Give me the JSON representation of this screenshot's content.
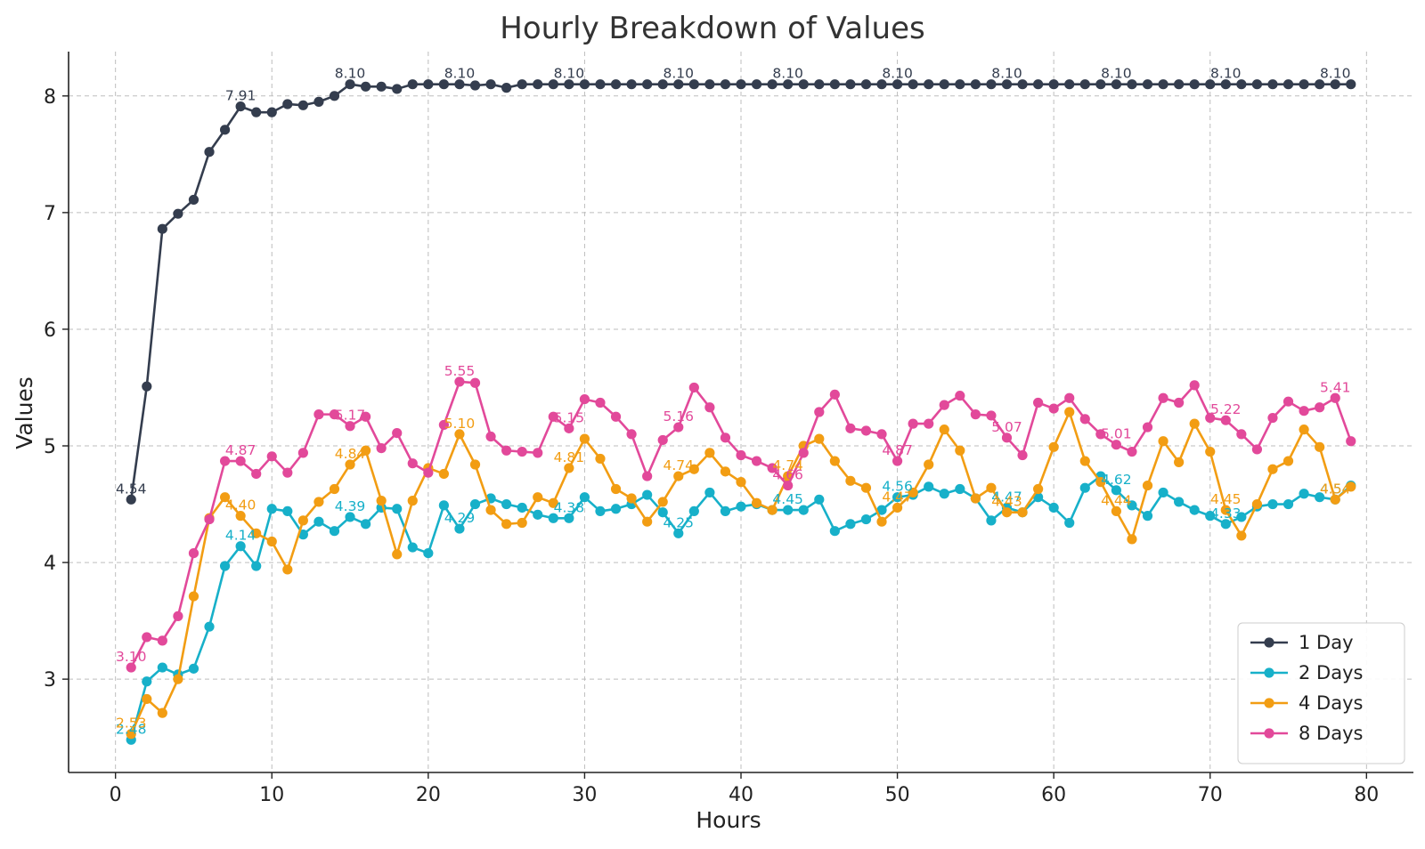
{
  "chart_data": {
    "type": "line",
    "title": "Hourly Breakdown of Values",
    "xlabel": "Hours",
    "ylabel": "Values",
    "xlim": [
      -3,
      83
    ],
    "ylim": [
      2.2,
      8.38
    ],
    "xticks": [
      0,
      10,
      20,
      30,
      40,
      50,
      60,
      70,
      80
    ],
    "yticks": [
      3,
      4,
      5,
      6,
      7,
      8
    ],
    "grid": true,
    "legend_position": "bottom-right",
    "x": [
      1,
      2,
      3,
      4,
      5,
      6,
      7,
      8,
      9,
      10,
      11,
      12,
      13,
      14,
      15,
      16,
      17,
      18,
      19,
      20,
      21,
      22,
      23,
      24,
      25,
      26,
      27,
      28,
      29,
      30,
      31,
      32,
      33,
      34,
      35,
      36,
      37,
      38,
      39,
      40,
      41,
      42,
      43,
      44,
      45,
      46,
      47,
      48,
      49,
      50,
      51,
      52,
      53,
      54,
      55,
      56,
      57,
      58,
      59,
      60,
      61,
      62,
      63,
      64,
      65,
      66,
      67,
      68,
      69,
      70,
      71,
      72,
      73,
      74,
      75,
      76,
      77,
      78,
      79
    ],
    "label_every": 7,
    "series": [
      {
        "name": "1 Day",
        "color": "#343d4e",
        "values": [
          4.54,
          5.51,
          6.86,
          6.99,
          7.11,
          7.52,
          7.71,
          7.91,
          7.86,
          7.86,
          7.93,
          7.92,
          7.95,
          8.0,
          8.1,
          8.08,
          8.08,
          8.06,
          8.1,
          8.1,
          8.1,
          8.1,
          8.09,
          8.1,
          8.07,
          8.1,
          8.1,
          8.1,
          8.1,
          8.1,
          8.1,
          8.1,
          8.1,
          8.1,
          8.1,
          8.1,
          8.1,
          8.1,
          8.1,
          8.1,
          8.1,
          8.1,
          8.1,
          8.1,
          8.1,
          8.1,
          8.1,
          8.1,
          8.1,
          8.1,
          8.1,
          8.1,
          8.1,
          8.1,
          8.1,
          8.1,
          8.1,
          8.1,
          8.1,
          8.1,
          8.1,
          8.1,
          8.1,
          8.1,
          8.1,
          8.1,
          8.1,
          8.1,
          8.1,
          8.1,
          8.1,
          8.1,
          8.1,
          8.1,
          8.1,
          8.1,
          8.1,
          8.1,
          8.1
        ],
        "labels": [
          "4.54",
          "5.51",
          "6.86",
          "6.99",
          "7.11",
          "7.52",
          "7.71",
          "7.91",
          "7.86",
          "7.86",
          "7.93",
          "7.92",
          "7.95",
          "8.00",
          "8.10",
          "8.08",
          "8.08",
          "8.06",
          "8.10",
          "8.10",
          "8.10",
          "8.10",
          "8.09",
          "8.10",
          "8.07",
          "8.10",
          "8.10",
          "8.10",
          "8.10",
          "8.10",
          "8.10",
          "8.10",
          "8.10",
          "8.10",
          "8.10",
          "8.10",
          "8.10",
          "8.10",
          "8.10",
          "8.10",
          "8.10",
          "8.10",
          "8.10",
          "8.10",
          "8.10",
          "8.10",
          "8.10",
          "8.10",
          "8.10",
          "8.10",
          "8.10",
          "8.10",
          "8.10",
          "8.10",
          "8.10",
          "8.10",
          "8.10",
          "8.10",
          "8.10",
          "8.10",
          "8.10",
          "8.10",
          "8.10",
          "8.10",
          "8.10",
          "8.10",
          "8.10",
          "8.10",
          "8.10",
          "8.10",
          "8.10",
          "8.10",
          "8.10",
          "8.10",
          "8.10",
          "8.10",
          "8.10",
          "8.10",
          "8.10"
        ]
      },
      {
        "name": "2 Days",
        "color": "#17b0c9",
        "values": [
          2.48,
          2.98,
          3.1,
          3.04,
          3.09,
          3.45,
          3.97,
          4.14,
          3.97,
          4.46,
          4.44,
          4.24,
          4.35,
          4.27,
          4.39,
          4.33,
          4.47,
          4.46,
          4.13,
          4.08,
          4.49,
          4.29,
          4.5,
          4.55,
          4.5,
          4.47,
          4.41,
          4.38,
          4.38,
          4.56,
          4.44,
          4.46,
          4.5,
          4.58,
          4.43,
          4.25,
          4.44,
          4.6,
          4.44,
          4.48,
          4.5,
          4.45,
          4.45,
          4.45,
          4.54,
          4.27,
          4.33,
          4.37,
          4.45,
          4.56,
          4.58,
          4.65,
          4.59,
          4.63,
          4.55,
          4.36,
          4.47,
          4.43,
          4.56,
          4.47,
          4.34,
          4.64,
          4.74,
          4.62,
          4.49,
          4.4,
          4.6,
          4.52,
          4.45,
          4.4,
          4.33,
          4.39,
          4.48,
          4.5,
          4.5,
          4.59,
          4.56,
          4.54,
          4.66
        ],
        "labels": [
          "2.48",
          "2.98",
          "3.10",
          "3.04",
          "3.09",
          "3.45",
          "3.97",
          "4.14",
          "3.97",
          "4.46",
          "4.44",
          "4.24",
          "4.35",
          "4.27",
          "4.39",
          "4.33",
          "4.47",
          "4.46",
          "4.13",
          "4.08",
          "4.49",
          "4.29",
          "4.50",
          "4.55",
          "4.50",
          "4.47",
          "4.41",
          "4.38",
          "4.38",
          "4.56",
          "4.44",
          "4.46",
          "4.50",
          "4.58",
          "4.43",
          "4.25",
          "4.44",
          "4.60",
          "4.44",
          "4.48",
          "4.50",
          "4.45",
          "4.45",
          "4.45",
          "4.54",
          "4.27",
          "4.33",
          "4.37",
          "4.45",
          "4.56",
          "4.58",
          "4.65",
          "4.59",
          "4.63",
          "4.55",
          "4.36",
          "4.47",
          "4.43",
          "4.56",
          "4.47",
          "4.34",
          "4.64",
          "4.74",
          "4.62",
          "4.49",
          "4.40",
          "4.60",
          "4.52",
          "4.45",
          "4.40",
          "4.33",
          "4.39",
          "4.48",
          "4.50",
          "4.50",
          "4.59",
          "4.56",
          "4.54",
          "4.66"
        ]
      },
      {
        "name": "4 Days",
        "color": "#f29d13",
        "values": [
          2.53,
          2.83,
          2.71,
          3.0,
          3.71,
          4.38,
          4.56,
          4.4,
          4.25,
          4.18,
          3.94,
          4.36,
          4.52,
          4.63,
          4.84,
          4.96,
          4.53,
          4.07,
          4.53,
          4.81,
          4.76,
          5.1,
          4.84,
          4.45,
          4.33,
          4.34,
          4.56,
          4.51,
          4.81,
          5.06,
          4.89,
          4.63,
          4.55,
          4.35,
          4.52,
          4.74,
          4.8,
          4.94,
          4.78,
          4.69,
          4.51,
          4.45,
          4.74,
          5.0,
          5.06,
          4.87,
          4.7,
          4.64,
          4.35,
          4.47,
          4.6,
          4.84,
          5.14,
          4.96,
          4.55,
          4.64,
          4.43,
          4.43,
          4.63,
          4.99,
          5.29,
          4.87,
          4.69,
          4.44,
          4.2,
          4.66,
          5.04,
          4.86,
          5.19,
          4.95,
          4.45,
          4.23,
          4.5,
          4.8,
          4.87,
          5.14,
          4.99,
          4.54,
          4.65
        ],
        "labels": [
          "2.53",
          "2.83",
          "2.71",
          "3.00",
          "3.71",
          "4.38",
          "4.56",
          "4.40",
          "4.25",
          "4.18",
          "3.94",
          "4.36",
          "4.52",
          "4.63",
          "4.84",
          "4.96",
          "4.53",
          "4.07",
          "4.53",
          "4.81",
          "4.76",
          "5.10",
          "4.84",
          "4.45",
          "4.33",
          "4.34",
          "4.56",
          "4.51",
          "4.81",
          "5.06",
          "4.89",
          "4.63",
          "4.55",
          "4.35",
          "4.52",
          "4.74",
          "4.80",
          "4.94",
          "4.78",
          "4.69",
          "4.51",
          "4.45",
          "4.74",
          "5.00",
          "5.06",
          "4.87",
          "4.70",
          "4.64",
          "4.35",
          "4.47",
          "4.60",
          "4.84",
          "5.14",
          "4.96",
          "4.55",
          "4.64",
          "4.43",
          "4.43",
          "4.63",
          "4.99",
          "5.29",
          "4.87",
          "4.69",
          "4.44",
          "4.20",
          "4.66",
          "5.04",
          "4.86",
          "5.19",
          "4.95",
          "4.45",
          "4.23",
          "4.50",
          "4.80",
          "4.87",
          "5.14",
          "4.99",
          "4.54",
          "4.65"
        ]
      },
      {
        "name": "8 Days",
        "color": "#e2499a",
        "values": [
          3.1,
          3.36,
          3.33,
          3.54,
          4.08,
          4.37,
          4.87,
          4.87,
          4.76,
          4.91,
          4.77,
          4.94,
          5.27,
          5.27,
          5.17,
          5.25,
          4.98,
          5.11,
          4.85,
          4.77,
          5.18,
          5.55,
          5.54,
          5.08,
          4.96,
          4.95,
          4.94,
          5.25,
          5.15,
          5.4,
          5.37,
          5.25,
          5.1,
          4.74,
          5.05,
          5.16,
          5.5,
          5.33,
          5.07,
          4.92,
          4.87,
          4.81,
          4.66,
          4.94,
          5.29,
          5.44,
          5.15,
          5.13,
          5.1,
          4.87,
          5.19,
          5.19,
          5.35,
          5.43,
          5.27,
          5.26,
          5.07,
          4.92,
          5.37,
          5.32,
          5.41,
          5.23,
          5.1,
          5.01,
          4.95,
          5.16,
          5.41,
          5.37,
          5.52,
          5.24,
          5.22,
          5.1,
          4.97,
          5.24,
          5.38,
          5.3,
          5.33,
          5.41,
          5.04
        ],
        "labels": [
          "3.10",
          "3.36",
          "3.33",
          "3.54",
          "4.08",
          "4.37",
          "4.87",
          "4.87",
          "4.76",
          "4.91",
          "4.77",
          "4.94",
          "5.27",
          "5.27",
          "5.17",
          "5.25",
          "4.98",
          "5.11",
          "4.85",
          "4.77",
          "5.18",
          "5.55",
          "5.54",
          "5.08",
          "4.96",
          "4.95",
          "4.94",
          "5.25",
          "5.15",
          "5.40",
          "5.37",
          "5.25",
          "5.10",
          "4.74",
          "5.05",
          "5.16",
          "5.50",
          "5.33",
          "5.07",
          "4.92",
          "4.87",
          "4.81",
          "4.66",
          "4.94",
          "5.29",
          "5.44",
          "5.15",
          "5.13",
          "5.10",
          "4.87",
          "5.19",
          "5.19",
          "5.35",
          "5.43",
          "5.27",
          "5.26",
          "5.07",
          "4.92",
          "5.37",
          "5.32",
          "5.41",
          "5.23",
          "5.10",
          "5.01",
          "4.95",
          "5.16",
          "5.41",
          "5.37",
          "5.52",
          "5.24",
          "5.22",
          "5.10",
          "4.97",
          "5.24",
          "5.38",
          "5.30",
          "5.33",
          "5.41",
          "5.04"
        ]
      }
    ]
  }
}
